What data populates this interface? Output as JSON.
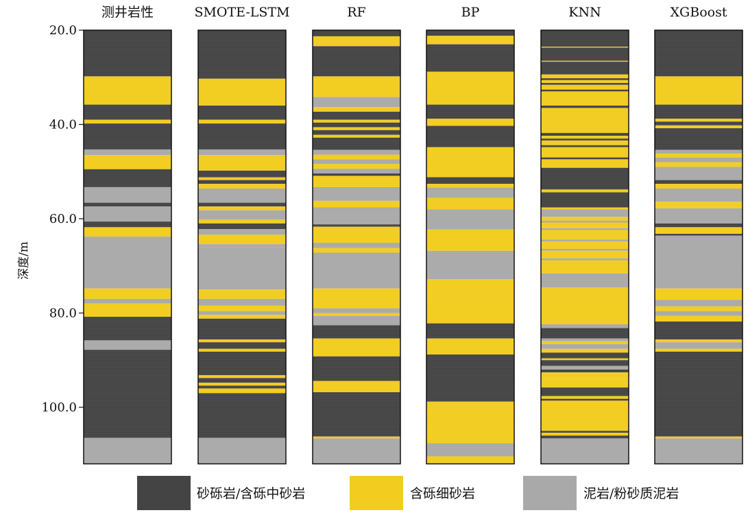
{
  "chart_data": {
    "type": "lithology_columns",
    "title": "",
    "ylabel": "深度/m",
    "ylim": [
      20.0,
      112.0
    ],
    "yticks": [
      20.0,
      40.0,
      60.0,
      80.0,
      100.0
    ],
    "ytick_labels": [
      "20.0",
      "40.0",
      "60.0",
      "80.0",
      "100.0"
    ],
    "classes": [
      {
        "key": "S",
        "label": "砂砾岩/含砾中砂岩",
        "color": "#444444"
      },
      {
        "key": "Y",
        "label": "含砾细砂岩",
        "color": "#f2cd1f"
      },
      {
        "key": "G",
        "label": "泥岩/粉砂质泥岩",
        "color": "#a9a9a9"
      }
    ],
    "columns": [
      {
        "name": "测井岩性",
        "intervals": [
          [
            20.0,
            29.8,
            "S"
          ],
          [
            29.8,
            35.8,
            "Y"
          ],
          [
            35.8,
            39.0,
            "S"
          ],
          [
            39.0,
            39.8,
            "Y"
          ],
          [
            39.8,
            45.3,
            "S"
          ],
          [
            45.3,
            46.5,
            "G"
          ],
          [
            46.5,
            49.5,
            "Y"
          ],
          [
            49.5,
            53.3,
            "S"
          ],
          [
            53.3,
            56.6,
            "G"
          ],
          [
            56.6,
            57.4,
            "S"
          ],
          [
            57.4,
            60.6,
            "G"
          ],
          [
            60.6,
            61.8,
            "S"
          ],
          [
            61.8,
            63.8,
            "Y"
          ],
          [
            63.8,
            74.8,
            "G"
          ],
          [
            74.8,
            77.0,
            "Y"
          ],
          [
            77.0,
            78.0,
            "G"
          ],
          [
            78.0,
            80.8,
            "Y"
          ],
          [
            80.8,
            85.8,
            "S"
          ],
          [
            85.8,
            87.8,
            "G"
          ],
          [
            87.8,
            106.5,
            "S"
          ],
          [
            106.5,
            112.0,
            "G"
          ]
        ]
      },
      {
        "name": "SMOTE-LSTM",
        "intervals": [
          [
            20.0,
            30.3,
            "S"
          ],
          [
            30.3,
            36.0,
            "Y"
          ],
          [
            36.0,
            39.0,
            "S"
          ],
          [
            39.0,
            39.8,
            "Y"
          ],
          [
            39.8,
            45.3,
            "S"
          ],
          [
            45.3,
            46.5,
            "G"
          ],
          [
            46.5,
            49.8,
            "Y"
          ],
          [
            49.8,
            51.2,
            "S"
          ],
          [
            51.2,
            51.8,
            "Y"
          ],
          [
            51.8,
            52.6,
            "S"
          ],
          [
            52.6,
            53.6,
            "Y"
          ],
          [
            53.6,
            56.6,
            "G"
          ],
          [
            56.6,
            57.4,
            "S"
          ],
          [
            57.4,
            58.2,
            "Y"
          ],
          [
            58.2,
            60.2,
            "G"
          ],
          [
            60.2,
            61.0,
            "Y"
          ],
          [
            61.0,
            62.2,
            "S"
          ],
          [
            62.2,
            63.4,
            "G"
          ],
          [
            63.4,
            65.4,
            "Y"
          ],
          [
            65.4,
            66.0,
            "G"
          ],
          [
            66.0,
            75.0,
            "G"
          ],
          [
            75.0,
            77.0,
            "Y"
          ],
          [
            77.0,
            78.4,
            "G"
          ],
          [
            78.4,
            79.6,
            "Y"
          ],
          [
            79.6,
            80.4,
            "G"
          ],
          [
            80.4,
            81.2,
            "Y"
          ],
          [
            81.2,
            85.6,
            "S"
          ],
          [
            85.6,
            86.2,
            "Y"
          ],
          [
            86.2,
            87.6,
            "S"
          ],
          [
            87.6,
            88.2,
            "Y"
          ],
          [
            88.2,
            93.2,
            "S"
          ],
          [
            93.2,
            93.8,
            "Y"
          ],
          [
            93.8,
            94.8,
            "S"
          ],
          [
            94.8,
            95.4,
            "Y"
          ],
          [
            95.4,
            96.0,
            "S"
          ],
          [
            96.0,
            97.0,
            "Y"
          ],
          [
            97.0,
            106.5,
            "S"
          ],
          [
            106.5,
            112.0,
            "G"
          ]
        ]
      },
      {
        "name": "RF",
        "intervals": [
          [
            20.0,
            21.3,
            "S"
          ],
          [
            21.3,
            23.4,
            "Y"
          ],
          [
            23.4,
            29.8,
            "S"
          ],
          [
            29.8,
            34.2,
            "Y"
          ],
          [
            34.2,
            36.3,
            "G"
          ],
          [
            36.3,
            37.3,
            "Y"
          ],
          [
            37.3,
            39.0,
            "S"
          ],
          [
            39.0,
            39.6,
            "Y"
          ],
          [
            39.6,
            40.6,
            "S"
          ],
          [
            40.6,
            41.2,
            "Y"
          ],
          [
            41.2,
            42.2,
            "S"
          ],
          [
            42.2,
            42.8,
            "Y"
          ],
          [
            42.8,
            45.4,
            "S"
          ],
          [
            45.4,
            46.4,
            "G"
          ],
          [
            46.4,
            47.4,
            "Y"
          ],
          [
            47.4,
            48.4,
            "G"
          ],
          [
            48.4,
            49.4,
            "Y"
          ],
          [
            49.4,
            50.4,
            "G"
          ],
          [
            50.4,
            50.9,
            "S"
          ],
          [
            50.9,
            53.3,
            "Y"
          ],
          [
            53.3,
            56.2,
            "G"
          ],
          [
            56.2,
            57.6,
            "Y"
          ],
          [
            57.6,
            61.2,
            "G"
          ],
          [
            61.2,
            61.7,
            "S"
          ],
          [
            61.7,
            65.1,
            "Y"
          ],
          [
            65.1,
            66.2,
            "G"
          ],
          [
            66.2,
            67.2,
            "Y"
          ],
          [
            67.2,
            74.8,
            "G"
          ],
          [
            74.8,
            79.0,
            "Y"
          ],
          [
            79.0,
            80.0,
            "G"
          ],
          [
            80.0,
            80.6,
            "Y"
          ],
          [
            80.6,
            82.6,
            "G"
          ],
          [
            82.6,
            85.4,
            "S"
          ],
          [
            85.4,
            89.2,
            "Y"
          ],
          [
            89.2,
            94.4,
            "S"
          ],
          [
            94.4,
            96.8,
            "Y"
          ],
          [
            96.8,
            106.2,
            "S"
          ],
          [
            106.2,
            106.6,
            "Y"
          ],
          [
            106.6,
            112.0,
            "G"
          ]
        ]
      },
      {
        "name": "BP",
        "intervals": [
          [
            20.0,
            21.2,
            "S"
          ],
          [
            21.2,
            23.0,
            "Y"
          ],
          [
            23.0,
            28.8,
            "S"
          ],
          [
            28.8,
            35.8,
            "Y"
          ],
          [
            35.8,
            38.8,
            "S"
          ],
          [
            38.8,
            40.3,
            "Y"
          ],
          [
            40.3,
            44.8,
            "S"
          ],
          [
            44.8,
            51.2,
            "Y"
          ],
          [
            51.2,
            52.6,
            "S"
          ],
          [
            52.6,
            53.4,
            "Y"
          ],
          [
            53.4,
            55.6,
            "G"
          ],
          [
            55.6,
            58.0,
            "Y"
          ],
          [
            58.0,
            62.3,
            "G"
          ],
          [
            62.3,
            66.8,
            "Y"
          ],
          [
            66.8,
            72.8,
            "G"
          ],
          [
            72.8,
            82.2,
            "Y"
          ],
          [
            82.2,
            85.4,
            "S"
          ],
          [
            85.4,
            88.8,
            "Y"
          ],
          [
            88.8,
            98.8,
            "S"
          ],
          [
            98.8,
            107.6,
            "Y"
          ],
          [
            107.6,
            110.4,
            "G"
          ],
          [
            110.4,
            112.0,
            "Y"
          ]
        ]
      },
      {
        "name": "KNN",
        "intervals": [
          [
            20.0,
            23.5,
            "S"
          ],
          [
            23.5,
            23.7,
            "Y"
          ],
          [
            23.7,
            26.5,
            "S"
          ],
          [
            26.5,
            26.7,
            "Y"
          ],
          [
            26.7,
            29.4,
            "S"
          ],
          [
            29.4,
            30.2,
            "Y"
          ],
          [
            30.2,
            30.6,
            "S"
          ],
          [
            30.6,
            31.2,
            "Y"
          ],
          [
            31.2,
            31.6,
            "S"
          ],
          [
            31.6,
            32.6,
            "Y"
          ],
          [
            32.6,
            33.0,
            "S"
          ],
          [
            33.0,
            36.0,
            "Y"
          ],
          [
            36.0,
            36.5,
            "S"
          ],
          [
            36.5,
            41.8,
            "Y"
          ],
          [
            41.8,
            42.4,
            "S"
          ],
          [
            42.4,
            43.0,
            "Y"
          ],
          [
            43.0,
            43.4,
            "S"
          ],
          [
            43.4,
            44.4,
            "Y"
          ],
          [
            44.4,
            44.8,
            "S"
          ],
          [
            44.8,
            47.0,
            "Y"
          ],
          [
            47.0,
            47.4,
            "S"
          ],
          [
            47.4,
            49.2,
            "Y"
          ],
          [
            49.2,
            53.8,
            "S"
          ],
          [
            53.8,
            54.4,
            "Y"
          ],
          [
            54.4,
            57.6,
            "S"
          ],
          [
            57.6,
            58.0,
            "Y"
          ],
          [
            58.0,
            59.6,
            "G"
          ],
          [
            59.6,
            60.4,
            "Y"
          ],
          [
            60.4,
            60.8,
            "G"
          ],
          [
            60.8,
            62.0,
            "Y"
          ],
          [
            62.0,
            62.4,
            "G"
          ],
          [
            62.4,
            64.4,
            "Y"
          ],
          [
            64.4,
            64.8,
            "G"
          ],
          [
            64.8,
            66.4,
            "Y"
          ],
          [
            66.4,
            66.8,
            "G"
          ],
          [
            66.8,
            68.4,
            "Y"
          ],
          [
            68.4,
            68.8,
            "G"
          ],
          [
            68.8,
            71.6,
            "Y"
          ],
          [
            71.6,
            74.6,
            "G"
          ],
          [
            74.6,
            82.4,
            "Y"
          ],
          [
            82.4,
            83.2,
            "G"
          ],
          [
            83.2,
            85.4,
            "S"
          ],
          [
            85.4,
            86.0,
            "G"
          ],
          [
            86.0,
            86.6,
            "Y"
          ],
          [
            86.6,
            87.6,
            "G"
          ],
          [
            87.6,
            88.4,
            "Y"
          ],
          [
            88.4,
            89.6,
            "S"
          ],
          [
            89.6,
            90.0,
            "Y"
          ],
          [
            90.0,
            91.2,
            "S"
          ],
          [
            91.2,
            92.0,
            "G"
          ],
          [
            92.0,
            92.6,
            "S"
          ],
          [
            92.6,
            94.0,
            "Y"
          ],
          [
            94.0,
            95.8,
            "Y"
          ],
          [
            95.8,
            97.6,
            "S"
          ],
          [
            97.6,
            98.2,
            "Y"
          ],
          [
            98.2,
            98.6,
            "S"
          ],
          [
            98.6,
            105.0,
            "Y"
          ],
          [
            105.0,
            105.4,
            "S"
          ],
          [
            105.4,
            106.0,
            "Y"
          ],
          [
            106.0,
            106.6,
            "S"
          ],
          [
            106.6,
            112.0,
            "G"
          ]
        ]
      },
      {
        "name": "XGBoost",
        "intervals": [
          [
            20.0,
            29.8,
            "S"
          ],
          [
            29.8,
            35.8,
            "Y"
          ],
          [
            35.8,
            38.8,
            "S"
          ],
          [
            38.8,
            39.4,
            "Y"
          ],
          [
            39.4,
            40.2,
            "S"
          ],
          [
            40.2,
            40.8,
            "Y"
          ],
          [
            40.8,
            45.4,
            "S"
          ],
          [
            45.4,
            46.2,
            "G"
          ],
          [
            46.2,
            47.0,
            "Y"
          ],
          [
            47.0,
            48.0,
            "G"
          ],
          [
            48.0,
            49.0,
            "Y"
          ],
          [
            49.0,
            51.8,
            "G"
          ],
          [
            51.8,
            52.6,
            "S"
          ],
          [
            52.6,
            53.6,
            "Y"
          ],
          [
            53.6,
            56.4,
            "G"
          ],
          [
            56.4,
            57.8,
            "Y"
          ],
          [
            57.8,
            61.0,
            "G"
          ],
          [
            61.0,
            61.8,
            "S"
          ],
          [
            61.8,
            63.2,
            "Y"
          ],
          [
            63.2,
            63.6,
            "S"
          ],
          [
            63.6,
            74.8,
            "G"
          ],
          [
            74.8,
            77.2,
            "Y"
          ],
          [
            77.2,
            78.6,
            "G"
          ],
          [
            78.6,
            79.6,
            "Y"
          ],
          [
            79.6,
            80.6,
            "G"
          ],
          [
            80.6,
            81.8,
            "Y"
          ],
          [
            81.8,
            85.6,
            "S"
          ],
          [
            85.6,
            86.2,
            "Y"
          ],
          [
            86.2,
            87.6,
            "G"
          ],
          [
            87.6,
            88.2,
            "Y"
          ],
          [
            88.2,
            106.2,
            "S"
          ],
          [
            106.2,
            106.6,
            "Y"
          ],
          [
            106.6,
            112.0,
            "G"
          ]
        ]
      }
    ]
  }
}
